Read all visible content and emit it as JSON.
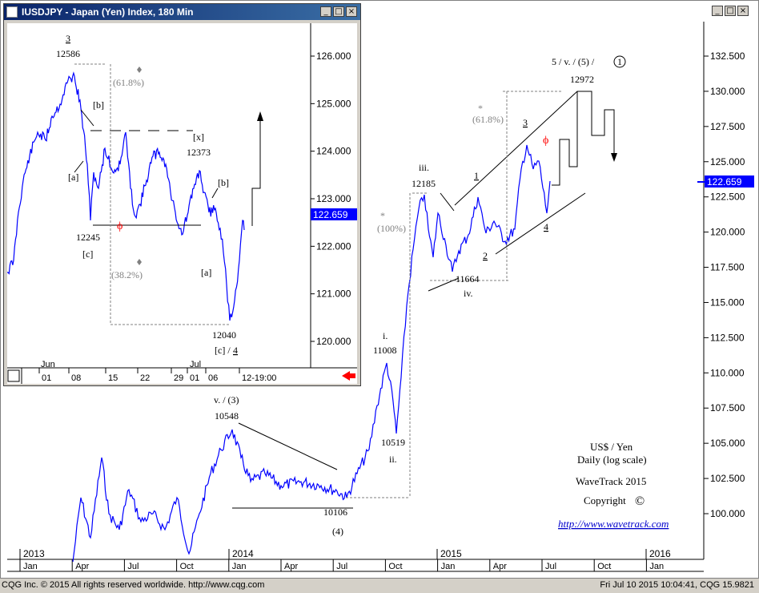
{
  "window_controls": [
    "_",
    "□",
    "×"
  ],
  "main_chart": {
    "y_ticks": [
      "132.500",
      "130.000",
      "127.500",
      "125.000",
      "122.500",
      "120.000",
      "117.500",
      "115.000",
      "112.500",
      "110.000",
      "107.500",
      "105.000",
      "102.500",
      "100.000"
    ],
    "current_price": "122.659",
    "year_labels": [
      "2013",
      "2014",
      "2015",
      "2016"
    ],
    "month_labels": [
      "Jan",
      "Apr",
      "Jul",
      "Oct",
      "Jan",
      "Apr",
      "Jul",
      "Oct",
      "Jan",
      "Apr",
      "Jul",
      "Oct",
      "Jan"
    ],
    "annotations": {
      "wave5_header": "5 / v. / (5) /",
      "wave1_circle": "1",
      "p12972": "12972",
      "star_618": "*",
      "fib_618": "(61.8%)",
      "w3": "3",
      "phi": "ϕ",
      "w1": "1",
      "w2": "2",
      "w4": "4",
      "iii": "iii.",
      "p12185": "12185",
      "star_100": "*",
      "fib_100": "(100%)",
      "p11664": "11664",
      "iv": "iv.",
      "i": "i.",
      "p11008": "11008",
      "p10519": "10519",
      "ii": "ii.",
      "v3": "v. / (3)",
      "p10548": "10548",
      "p10106": "10106",
      "w4p": "(4)"
    },
    "info": {
      "line1": "US$ / Yen",
      "line2": "Daily (log scale)",
      "line3": "WaveTrack 2015",
      "line4": "Copyright",
      "copyright_symbol": "©",
      "link": "http://www.wavetrack.com"
    }
  },
  "inset_chart": {
    "title": "IUSDJPY - Japan (Yen) Index, 180 Min",
    "y_ticks": [
      "126.000",
      "125.000",
      "124.000",
      "123.000",
      "122.000",
      "121.000",
      "120.000"
    ],
    "current_price": "122.659",
    "month_labels": [
      "Jun",
      "Jul"
    ],
    "day_labels": [
      "01",
      "08",
      "15",
      "22",
      "29",
      "01",
      "06",
      "12-19:00"
    ],
    "annotations": {
      "w3": "3",
      "p12586": "12586",
      "fib_618": "(61.8%)",
      "b1": "[b]",
      "x": "[x]",
      "p12373": "12373",
      "a1": "[a]",
      "b2": "[b]",
      "p12245": "12245",
      "c": "[c]",
      "phi": "ϕ",
      "fib_382": "(38.2%)",
      "a2": "[a]",
      "p12040": "12040",
      "c4_a": "[c] /",
      "c4_b": "4"
    }
  },
  "statusbar": {
    "left": "CQG Inc. © 2015 All rights reserved worldwide. http://www.cqg.com",
    "right": "Fri Jul 10 2015  10:04:41, CQG 15.9821"
  },
  "colors": {
    "price_line": "#0000ff",
    "current_price_bg": "#0000ff",
    "fib_text": "#808080",
    "phi": "#ff0000",
    "link": "#0000cc",
    "title_bar": "#0a246a"
  }
}
